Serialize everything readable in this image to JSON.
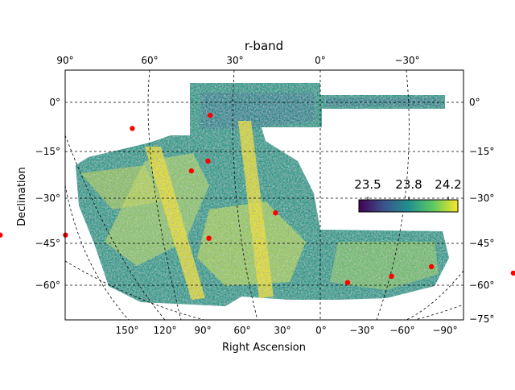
{
  "chart_data": {
    "type": "heatmap",
    "title": "r-band",
    "xlabel": "Right Ascension",
    "ylabel": "Declination",
    "projection": "McBryde-Thomas flat-polar quartic (skymap)",
    "grid": true,
    "top_ra_ticks": [
      "90°",
      "60°",
      "30°",
      "0°",
      "−30°"
    ],
    "bottom_ra_ticks": [
      "150°",
      "120°",
      "90°",
      "60°",
      "30°",
      "0°",
      "−30°",
      "−60°",
      "−90°"
    ],
    "left_dec_ticks": [
      "0°",
      "−15°",
      "−30°",
      "−45°",
      "−60°"
    ],
    "right_dec_ticks": [
      "0°",
      "−15°",
      "−30°",
      "−45°",
      "−60°",
      "−75°"
    ],
    "colorbar": {
      "cmap": "viridis",
      "vmin": 23.4,
      "vmax": 24.25,
      "ticks": [
        "23.5",
        "23.8",
        "24.2"
      ],
      "colors": [
        "#440154",
        "#3b528b",
        "#21908d",
        "#5dc963",
        "#fde725"
      ],
      "placement": "right-center, inside axes"
    },
    "markers": {
      "color": "#ff0000",
      "points": [
        {
          "ra": 38,
          "dec": -4
        },
        {
          "ra": 64,
          "dec": -8
        },
        {
          "ra": 37,
          "dec": -18
        },
        {
          "ra": 42,
          "dec": -21
        },
        {
          "ra": 14,
          "dec": -34
        },
        {
          "ra": 98,
          "dec": -41
        },
        {
          "ra": 78,
          "dec": -41
        },
        {
          "ra": 34,
          "dec": -42
        },
        {
          "ra": 100,
          "dec": -49
        },
        {
          "ra": 96,
          "dec": -57
        },
        {
          "ra": 101,
          "dec": -61
        },
        {
          "ra": -8,
          "dec": -56
        },
        {
          "ra": -21,
          "dec": -54
        },
        {
          "ra": -33,
          "dec": -51
        },
        {
          "ra": -57,
          "dec": -53
        }
      ]
    }
  }
}
